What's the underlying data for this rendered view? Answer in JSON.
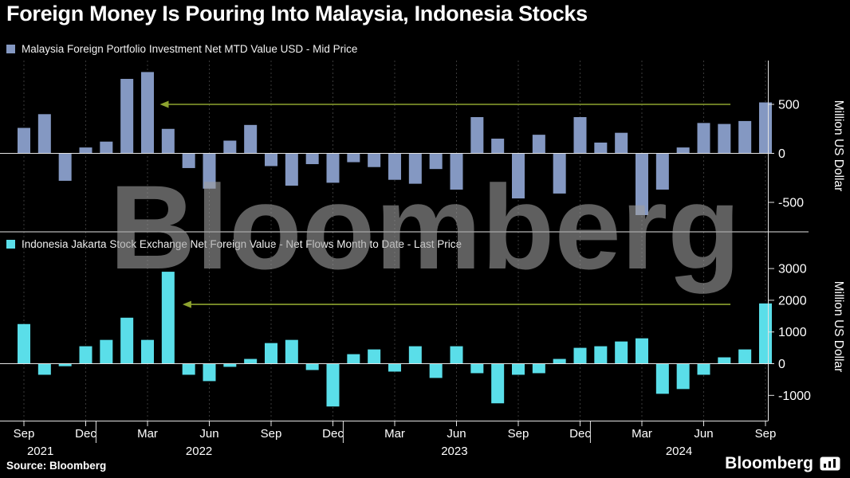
{
  "title": "Foreign Money Is Pouring Into Malaysia, Indonesia Stocks",
  "watermark": "Bloomberg",
  "source": "Source: Bloomberg",
  "brand": "Bloomberg",
  "colors": {
    "background": "#000000",
    "malaysia_bar": "#8498c2",
    "indonesia_bar": "#5adee9",
    "arrow": "#8da32f",
    "gridline": "#3a3a3a",
    "axis": "#e3e3e3",
    "text": "#ffffff"
  },
  "x_axis": {
    "start_month": "Sep 2021",
    "end_month": "Sep 2024",
    "tick_labels": [
      "Sep",
      "Dec",
      "Mar",
      "Jun",
      "Sep",
      "Dec",
      "Mar",
      "Jun",
      "Sep",
      "Dec",
      "Mar",
      "Jun",
      "Sep"
    ],
    "tick_indices": [
      0,
      3,
      6,
      9,
      12,
      15,
      18,
      21,
      24,
      27,
      30,
      33,
      36
    ],
    "year_labels": [
      {
        "label": "2021",
        "index": 0.8
      },
      {
        "label": "2022",
        "index": 8.5
      },
      {
        "label": "2023",
        "index": 20.9
      },
      {
        "label": "2024",
        "index": 31.8
      }
    ],
    "year_separator_indices": [
      3.5,
      15.5,
      27.5
    ]
  },
  "chart_data": [
    {
      "type": "bar",
      "title": "Malaysia Foreign Portfolio Investment Net MTD Value USD - Mid Price",
      "ylabel": "Million US Dollar",
      "ylim": [
        -700,
        950
      ],
      "yticks": [
        500,
        0,
        -500
      ],
      "grid": "vertical-dotted",
      "legend_position": "top-left",
      "bar_color": "#8498c2",
      "values": [
        260,
        400,
        -280,
        60,
        120,
        760,
        830,
        250,
        -150,
        -360,
        130,
        290,
        -130,
        -330,
        -110,
        -300,
        -90,
        -140,
        -270,
        -310,
        -160,
        -370,
        370,
        150,
        -460,
        190,
        -410,
        370,
        110,
        210,
        -630,
        -370,
        60,
        310,
        300,
        330,
        520
      ],
      "arrow": {
        "value": 500,
        "from_index": 6.6,
        "to_index": 34.3
      }
    },
    {
      "type": "bar",
      "title": "Indonesia Jakarta Stock Exchange Net Foreign Value - Net Flows Month to Date - Last Price",
      "ylabel": "Million US Dollar",
      "ylim": [
        -1800,
        3300
      ],
      "yticks": [
        3000,
        2000,
        1000,
        0,
        -1000
      ],
      "grid": "vertical-dotted",
      "legend_position": "top-left",
      "bar_color": "#5adee9",
      "values": [
        1250,
        -350,
        -80,
        550,
        750,
        1450,
        750,
        2900,
        -350,
        -550,
        -100,
        150,
        650,
        750,
        -200,
        -1350,
        300,
        450,
        -250,
        550,
        -450,
        550,
        -300,
        -1250,
        -350,
        -300,
        150,
        500,
        550,
        700,
        800,
        -950,
        -800,
        -350,
        200,
        450,
        1900
      ],
      "arrow": {
        "value": 1870,
        "from_index": 7.7,
        "to_index": 34.3
      }
    }
  ]
}
